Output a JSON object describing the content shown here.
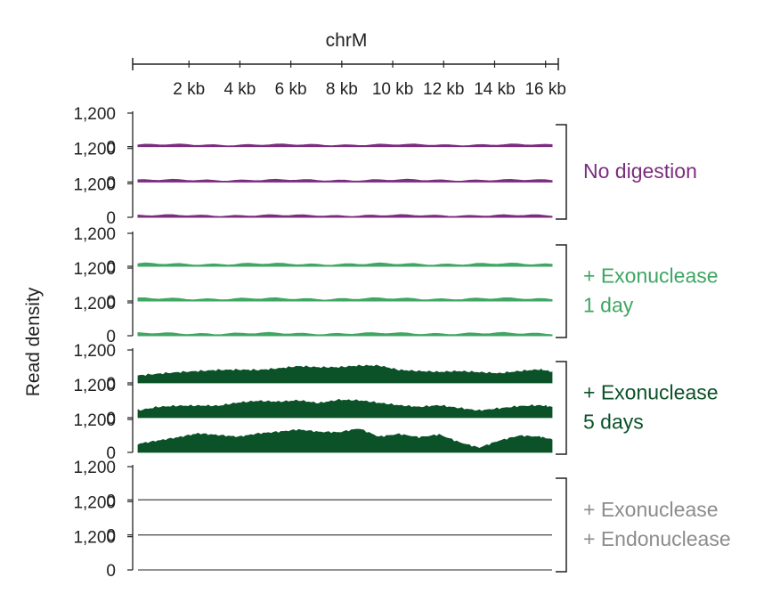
{
  "chart_data": {
    "type": "area",
    "title": "chrM",
    "ylabel": "Read density",
    "x_ticks": [
      "2 kb",
      "4 kb",
      "6 kb",
      "8 kb",
      "10 kb",
      "12 kb",
      "14 kb",
      "16 kb"
    ],
    "x_tick_values_kb": [
      2,
      4,
      6,
      8,
      10,
      12,
      14,
      16
    ],
    "xlim_kb": [
      0,
      16.5
    ],
    "ylim": [
      0,
      1200
    ],
    "y_tick_labels": [
      "1,200",
      "0"
    ],
    "groups": [
      {
        "label_lines": [
          "No digestion"
        ],
        "color": "#7b2d7e",
        "track_count": 3,
        "shape": "flat",
        "mean_density": 60
      },
      {
        "label_lines": [
          "+ Exonuclease",
          "1 day"
        ],
        "color": "#3fa663",
        "track_count": 3,
        "shape": "flat",
        "mean_density": 75
      },
      {
        "label_lines": [
          "+ Exonuclease",
          "5 days"
        ],
        "color": "#0b5228",
        "track_count": 3,
        "shape": "profile",
        "tracks": [
          {
            "x_kb": [
              0,
              0.8,
              1.6,
              2.4,
              3.2,
              4,
              4.8,
              5.6,
              6.4,
              7.2,
              8,
              8.8,
              9.6,
              10.4,
              11.2,
              12,
              12.8,
              13.6,
              14.4,
              15.2,
              16,
              16.5
            ],
            "density": [
              260,
              320,
              380,
              420,
              460,
              470,
              460,
              520,
              600,
              560,
              560,
              620,
              620,
              460,
              420,
              390,
              420,
              380,
              340,
              420,
              480,
              400
            ]
          },
          {
            "x_kb": [
              0,
              0.8,
              1.6,
              2.4,
              3.2,
              4,
              4.8,
              5.6,
              6.4,
              7.2,
              8,
              8.8,
              9.6,
              10.4,
              11.2,
              12,
              12.8,
              13.6,
              14.4,
              15.2,
              16,
              16.5
            ],
            "density": [
              250,
              380,
              420,
              430,
              420,
              540,
              600,
              570,
              620,
              520,
              640,
              620,
              530,
              440,
              380,
              440,
              340,
              250,
              330,
              410,
              440,
              380
            ]
          },
          {
            "x_kb": [
              0,
              0.8,
              1.6,
              2.4,
              3.2,
              4,
              4.8,
              5.6,
              6.4,
              7.2,
              8,
              8.8,
              9.6,
              10.4,
              11.2,
              12,
              12.8,
              13.6,
              14.4,
              15.2,
              16,
              16.5
            ],
            "density": [
              300,
              420,
              540,
              680,
              620,
              560,
              680,
              740,
              820,
              740,
              720,
              860,
              560,
              660,
              540,
              640,
              360,
              160,
              420,
              600,
              560,
              460
            ]
          }
        ]
      },
      {
        "label_lines": [
          "+ Exonuclease",
          "+ Endonuclease"
        ],
        "color": "#8c8c8c",
        "track_count": 3,
        "shape": "empty",
        "mean_density": 0
      }
    ]
  }
}
